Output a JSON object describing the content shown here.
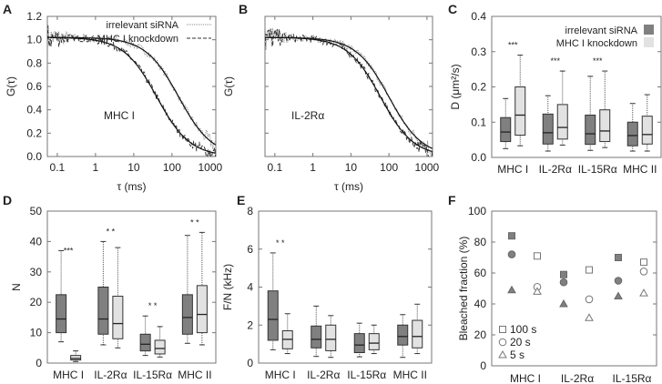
{
  "panel_labels": [
    "A",
    "B",
    "C",
    "D",
    "E",
    "F"
  ],
  "colors": {
    "irrelevant": "#808080",
    "knockdown": "#e2e2e2",
    "axis": "#777777",
    "text": "#222222"
  },
  "chart_data": [
    {
      "id": "A",
      "type": "line",
      "xlabel": "τ (ms)",
      "ylabel": "G(τ)",
      "annotation": "MHC I",
      "xscale": "log",
      "xlim": [
        0.055,
        1400
      ],
      "ylim": [
        0,
        1.2
      ],
      "xticks": [
        0.1,
        1,
        10,
        100,
        1000
      ],
      "xtick_labels": [
        "0.1",
        "1",
        "10",
        "100",
        "1000"
      ],
      "yticks": [
        0,
        0.2,
        0.4,
        0.6,
        0.8,
        1.0,
        1.2
      ],
      "ytick_labels": [
        "0.0",
        "0.2",
        "0.4",
        "0.6",
        "0.8",
        "1.0",
        "1.2"
      ],
      "legend": {
        "placement": "top-right",
        "entries": [
          "irrelevant siRNA",
          "MHC I knockdown"
        ]
      },
      "series": [
        {
          "name": "irrelevant siRNA",
          "style": "dotted",
          "fit": {
            "G0": 1.02,
            "tau_D_ms": 150
          }
        },
        {
          "name": "MHC I knockdown",
          "style": "dashed",
          "fit": {
            "G0": 1.02,
            "tau_D_ms": 40
          }
        }
      ]
    },
    {
      "id": "B",
      "type": "line",
      "xlabel": "τ (ms)",
      "ylabel": "G(τ)",
      "annotation": "IL-2Rα",
      "xscale": "log",
      "xlim": [
        0.055,
        1400
      ],
      "ylim": [
        0,
        1.2
      ],
      "xticks": [
        0.1,
        1,
        10,
        100,
        1000
      ],
      "xtick_labels": [
        "0.1",
        "1",
        "10",
        "100",
        "1000"
      ],
      "yticks": [
        0,
        0.2,
        0.4,
        0.6,
        0.8,
        1.0,
        1.2
      ],
      "ytick_labels": [],
      "series": [
        {
          "name": "irrelevant siRNA",
          "style": "dotted",
          "fit": {
            "G0": 1.02,
            "tau_D_ms": 100
          }
        },
        {
          "name": "MHC I knockdown",
          "style": "dashed",
          "fit": {
            "G0": 1.02,
            "tau_D_ms": 60
          }
        }
      ]
    },
    {
      "id": "C",
      "type": "box",
      "ylabel": "D (μm²/s)",
      "ylim": [
        0,
        0.4
      ],
      "yticks": [
        0,
        0.1,
        0.2,
        0.3,
        0.4
      ],
      "ytick_labels": [
        "0.0",
        "0.1",
        "0.2",
        "0.3",
        "0.4"
      ],
      "categories": [
        "MHC I",
        "IL-2Rα",
        "IL-15Rα",
        "MHC II"
      ],
      "legend": {
        "placement": "top-right",
        "entries": [
          "irrelevant siRNA",
          "MHC I knockdown"
        ]
      },
      "significance": [
        "***",
        "***",
        "***",
        ""
      ],
      "series": [
        {
          "name": "irrelevant siRNA",
          "boxes": [
            [
              0.025,
              0.045,
              0.072,
              0.113,
              0.167
            ],
            [
              0.018,
              0.038,
              0.07,
              0.123,
              0.175
            ],
            [
              0.02,
              0.037,
              0.067,
              0.12,
              0.23
            ],
            [
              0.018,
              0.033,
              0.062,
              0.1,
              0.153
            ]
          ]
        },
        {
          "name": "MHC I knockdown",
          "boxes": [
            [
              0.033,
              0.063,
              0.12,
              0.2,
              0.29
            ],
            [
              0.035,
              0.052,
              0.085,
              0.15,
              0.245
            ],
            [
              0.028,
              0.045,
              0.075,
              0.135,
              0.245
            ],
            [
              0.018,
              0.038,
              0.065,
              0.117,
              0.178
            ]
          ]
        }
      ]
    },
    {
      "id": "D",
      "type": "box",
      "ylabel": "N",
      "ylim": [
        0,
        50
      ],
      "yticks": [
        0,
        10,
        20,
        30,
        40,
        50
      ],
      "ytick_labels": [
        "0",
        "10",
        "20",
        "30",
        "40",
        "50"
      ],
      "categories": [
        "MHC I",
        "IL-2Rα",
        "IL-15Rα",
        "MHC II"
      ],
      "significance": [
        "***",
        "* *",
        "* *",
        "* *"
      ],
      "series": [
        {
          "name": "irrelevant siRNA",
          "boxes": [
            [
              7,
              10,
              14.5,
              22.5,
              37
            ],
            [
              6,
              9.5,
              14.5,
              25,
              40
            ],
            [
              2.5,
              4,
              6.2,
              9.5,
              15.5
            ],
            [
              6.5,
              9.5,
              15,
              22.5,
              42
            ]
          ]
        },
        {
          "name": "MHC I knockdown",
          "boxes": [
            [
              0.5,
              1,
              1.5,
              2.5,
              4
            ],
            [
              5,
              8,
              13,
              22,
              38
            ],
            [
              2,
              3,
              4.8,
              7.5,
              12
            ],
            [
              6,
              10,
              16,
              25.5,
              43
            ]
          ]
        }
      ]
    },
    {
      "id": "E",
      "type": "box",
      "ylabel": "F/N (kHz)",
      "ylim": [
        0,
        8
      ],
      "yticks": [
        0,
        2,
        4,
        6,
        8
      ],
      "ytick_labels": [
        "0",
        "2",
        "4",
        "6",
        "8"
      ],
      "categories": [
        "MHC I",
        "IL-2Rα",
        "IL-15Rα",
        "MHC II"
      ],
      "significance": [
        "* *",
        "",
        "",
        ""
      ],
      "series": [
        {
          "name": "irrelevant siRNA",
          "boxes": [
            [
              0.7,
              1.2,
              2.3,
              3.8,
              5.8
            ],
            [
              0.35,
              0.8,
              1.25,
              1.95,
              3.0
            ],
            [
              0.33,
              0.55,
              0.95,
              1.55,
              2.1
            ],
            [
              0.3,
              0.95,
              1.4,
              2.0,
              2.55
            ]
          ]
        },
        {
          "name": "MHC I knockdown",
          "boxes": [
            [
              0.5,
              0.75,
              1.25,
              1.7,
              2.6
            ],
            [
              0.3,
              0.65,
              1.25,
              2.0,
              2.5
            ],
            [
              0.5,
              0.7,
              1.05,
              1.55,
              2.0
            ],
            [
              0.5,
              0.8,
              1.4,
              2.25,
              3.1
            ]
          ]
        }
      ]
    },
    {
      "id": "F",
      "type": "scatter",
      "ylabel": "Bleached fraction (%)",
      "ylim": [
        0,
        100
      ],
      "yticks": [
        0,
        20,
        40,
        60,
        80,
        100
      ],
      "ytick_labels": [
        "0",
        "20",
        "40",
        "60",
        "80",
        "100"
      ],
      "categories": [
        "MHC I",
        "IL-2Rα",
        "IL-15Rα"
      ],
      "legend": {
        "placement": "bottom-left",
        "entries": [
          {
            "label": "100 s",
            "marker": "square"
          },
          {
            "label": "20 s",
            "marker": "circle"
          },
          {
            "label": "5 s",
            "marker": "triangle"
          }
        ]
      },
      "series": [
        {
          "name": "irrelevant siRNA",
          "100 s": [
            84,
            59,
            70
          ],
          "20 s": [
            72,
            54,
            55
          ],
          "5 s": [
            49,
            40,
            45
          ]
        },
        {
          "name": "MHC I knockdown",
          "100 s": [
            71,
            62,
            67
          ],
          "20 s": [
            51,
            43,
            61
          ],
          "5 s": [
            48,
            31,
            47
          ]
        }
      ]
    }
  ]
}
